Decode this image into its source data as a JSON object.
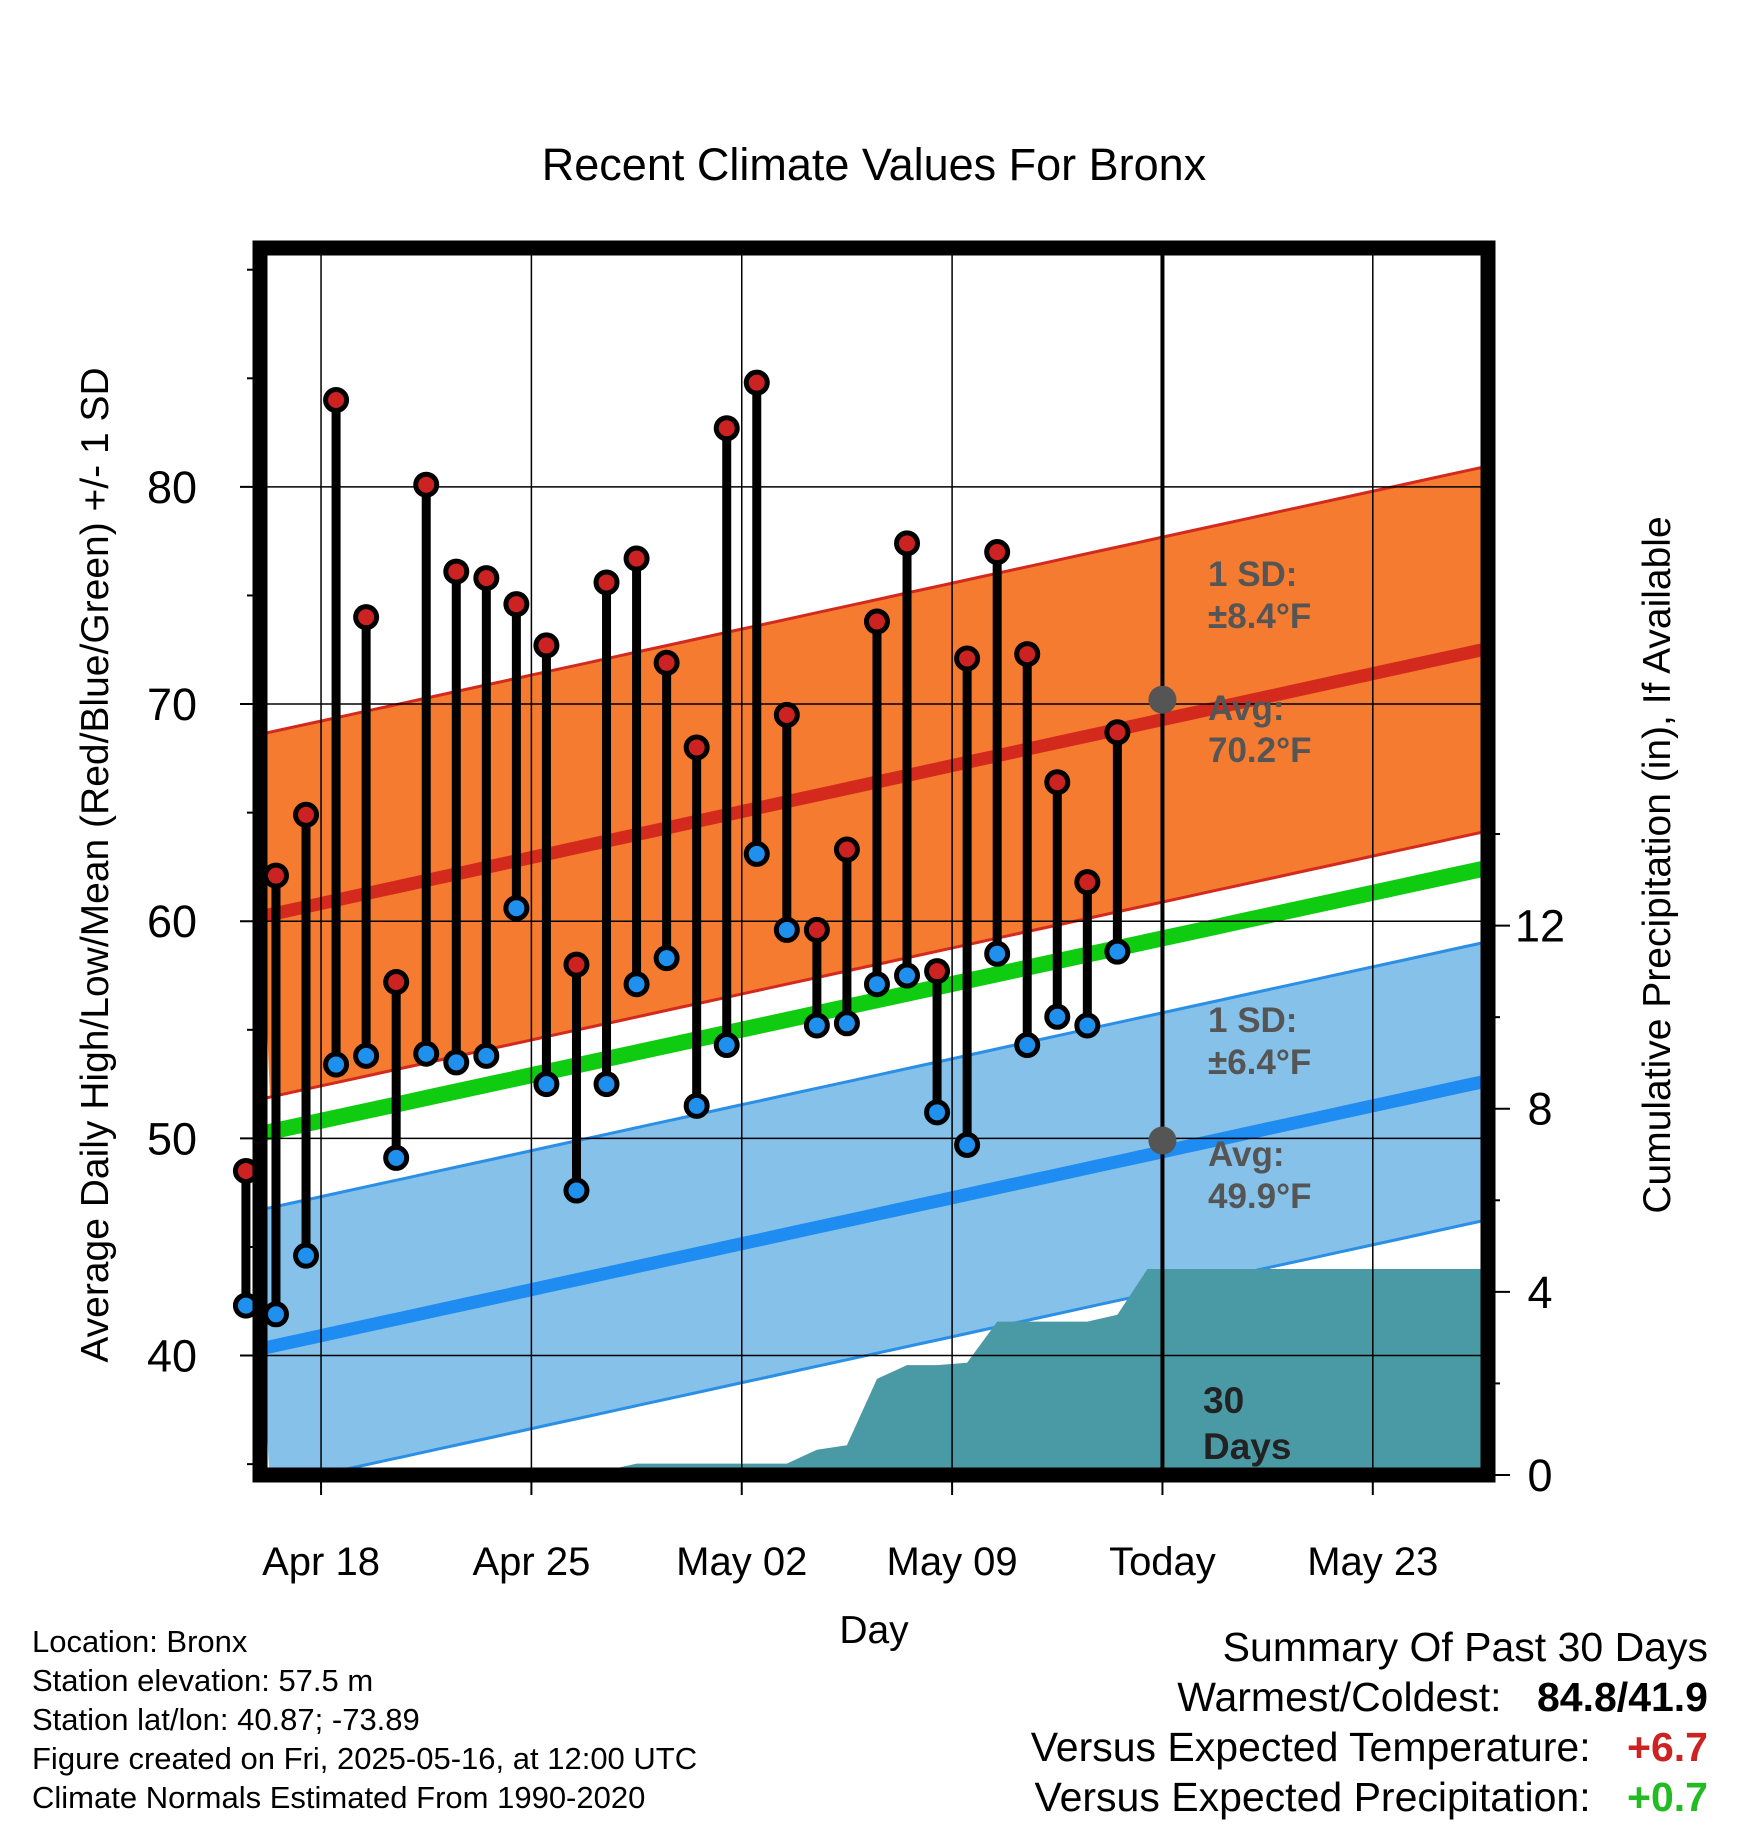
{
  "chart_data": {
    "type": "line",
    "title": "Recent Climate Values For Bronx",
    "xlabel": "Day",
    "ylabel": "Average Daily High/Low/Mean (Red/Blue/Green) +/- 1 SD",
    "y2label": "Cumulative Precipitation (in), If Available",
    "x_tick_labels": [
      "Apr 18",
      "Apr 25",
      "May 02",
      "May 09",
      "Today",
      "May 23"
    ],
    "y_ticks": [
      40,
      50,
      60,
      70,
      80
    ],
    "y2_ticks": [
      0,
      4,
      8,
      12
    ],
    "ylim": [
      34.5,
      91
    ],
    "y2lim": [
      0,
      26.8
    ],
    "grid": true,
    "normals": {
      "high_avg": {
        "start": 60.0,
        "end": 72.7
      },
      "high_sd": 8.4,
      "low_avg": {
        "start": 40.1,
        "end": 52.8
      },
      "low_sd": 6.4,
      "mean_avg": {
        "start": 50.0,
        "end": 62.6
      }
    },
    "series": [
      {
        "name": "High",
        "color": "#cc2222",
        "values": [
          48.5,
          62.1,
          64.9,
          84.0,
          74.0,
          57.2,
          80.1,
          76.1,
          75.8,
          74.6,
          72.7,
          58.0,
          75.6,
          76.7,
          71.9,
          68.0,
          82.7,
          84.8,
          69.5,
          59.6,
          63.3,
          73.8,
          77.4,
          57.7,
          72.1,
          77.0,
          72.3,
          66.4,
          61.8,
          68.7
        ]
      },
      {
        "name": "Low",
        "color": "#2090ee",
        "values": [
          42.3,
          41.9,
          44.6,
          53.4,
          53.8,
          49.1,
          53.9,
          53.5,
          53.8,
          60.6,
          52.5,
          47.6,
          52.5,
          57.1,
          58.3,
          51.5,
          54.3,
          63.1,
          59.6,
          55.2,
          55.3,
          57.1,
          57.5,
          51.2,
          49.7,
          58.5,
          54.3,
          55.6,
          55.2,
          58.6
        ]
      }
    ],
    "precip_cumulative": [
      0,
      0,
      0,
      0,
      0,
      0,
      0,
      0,
      0,
      0,
      0.1,
      0.25,
      0.25,
      0.25,
      0.25,
      0.25,
      0.25,
      0.55,
      0.65,
      2.1,
      2.4,
      2.4,
      2.45,
      3.35,
      3.35,
      3.35,
      3.35,
      3.5,
      4.5,
      4.5
    ],
    "annotations": {
      "high_sd_label": "1 SD:",
      "high_sd_value": "±8.4°F",
      "high_avg_label": "Avg:",
      "high_avg_value": "70.2°F",
      "low_sd_label": "1 SD:",
      "low_sd_value": "±6.4°F",
      "low_avg_label": "Avg:",
      "low_avg_value": "49.9°F",
      "period_number": "30",
      "period_unit": "Days"
    }
  },
  "info": {
    "location": "Location: Bronx",
    "elevation": "Station elevation: 57.5 m",
    "latlon": "Station lat/lon: 40.87; -73.89",
    "created": "Figure created on Fri, 2025-05-16, at 12:00 UTC",
    "normals": "Climate Normals Estimated From 1990-2020"
  },
  "summary": {
    "title": "Summary Of Past 30 Days",
    "warm_cold_label": "Warmest/Coldest:",
    "warm_value": "84.8",
    "cold_value": "41.9",
    "temp_label": "Versus Expected Temperature:",
    "temp_value": "+6.7",
    "temp_color": "#cc2222",
    "precip_label": "Versus Expected Precipitation:",
    "precip_value": "+0.7",
    "precip_color": "#22bb22"
  }
}
